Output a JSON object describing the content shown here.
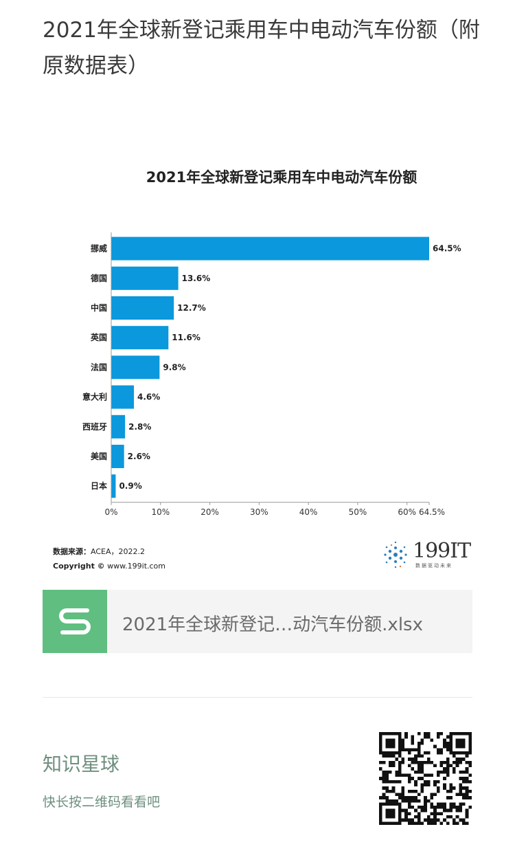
{
  "header": {
    "title": "2021年全球新登记乘用车中电动汽车份额（附原数据表）"
  },
  "chart_data": {
    "type": "bar",
    "orientation": "horizontal",
    "title": "2021年全球新登记乘用车中电动汽车份额",
    "categories": [
      "挪威",
      "德国",
      "中国",
      "英国",
      "法国",
      "意大利",
      "西班牙",
      "美国",
      "日本"
    ],
    "values": [
      64.5,
      13.6,
      12.7,
      11.6,
      9.8,
      4.6,
      2.8,
      2.6,
      0.9
    ],
    "value_labels": [
      "64.5%",
      "13.6%",
      "12.7%",
      "11.6%",
      "9.8%",
      "4.6%",
      "2.8%",
      "2.6%",
      "0.9%"
    ],
    "xticks": [
      "0%",
      "10%",
      "20%",
      "30%",
      "40%",
      "50%",
      "60%",
      "64.5%"
    ],
    "xtick_values": [
      0,
      10,
      20,
      30,
      40,
      50,
      60,
      64.5
    ],
    "xlim": [
      0,
      64.5
    ],
    "bar_color": "#0b98dc",
    "grid": false
  },
  "source": {
    "label": "数据来源：",
    "value": "ACEA，2022.2",
    "copyright_label": "Copyright ©",
    "copyright_value": "www.199it.com"
  },
  "logo": {
    "name": "199IT",
    "tagline": "数据驱动未来"
  },
  "attachment": {
    "filename": "2021年全球新登记…动汽车份额.xlsx",
    "icon": "spreadsheet-s-icon",
    "color": "#5fbe80"
  },
  "footer": {
    "planet": "知识星球",
    "hint": "快长按二维码看看吧"
  }
}
